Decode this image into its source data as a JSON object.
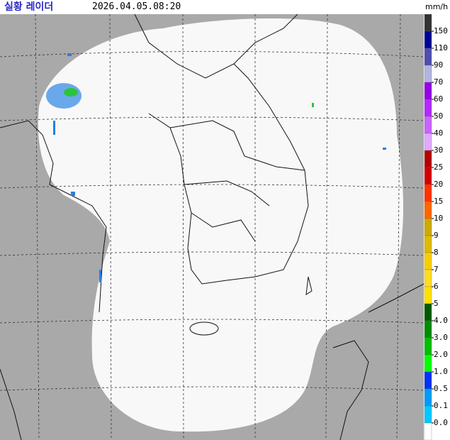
{
  "header": {
    "title": "실황 레이더",
    "time": "2026.04.05.08:20"
  },
  "legend": {
    "unit": "mm/h",
    "labels": [
      "150",
      "110",
      "90",
      "70",
      "60",
      "50",
      "40",
      "30",
      "25",
      "20",
      "15",
      "10",
      "9",
      "8",
      "7",
      "6",
      "5",
      "4.0",
      "3.0",
      "2.0",
      "1.0",
      "0.5",
      "0.1",
      "0.0"
    ],
    "colors": [
      "#333333",
      "#000390",
      "#4c4eb1",
      "#b3b4de",
      "#9300e4",
      "#b329ff",
      "#c963ff",
      "#e0a9ff",
      "#b40000",
      "#d20000",
      "#ff3200",
      "#ff6600",
      "#ccaa00",
      "#e0b900",
      "#f9cd00",
      "#ffdc1f",
      "#ffe100",
      "#005a00",
      "#008c00",
      "#00be00",
      "#00ff00",
      "#0033f5",
      "#009bf5",
      "#00c8ff",
      "#ffffff"
    ]
  }
}
